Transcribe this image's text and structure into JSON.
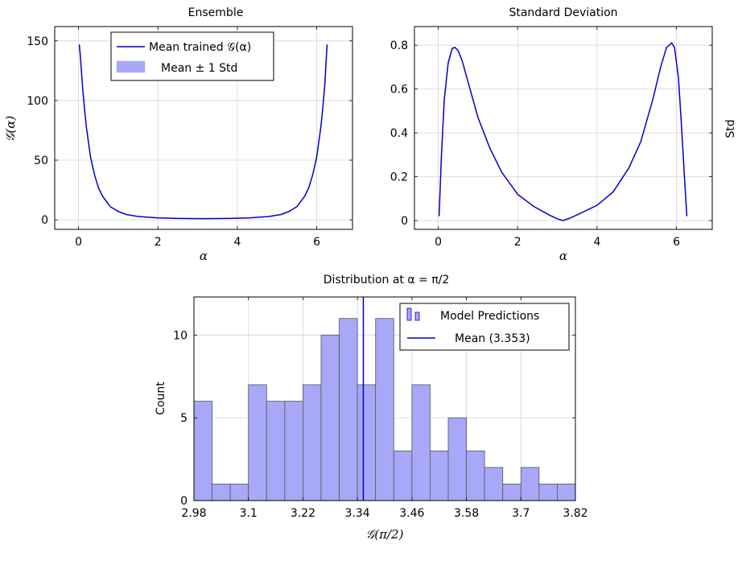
{
  "colors": {
    "line": "#0000cc",
    "fill": "#a8a8f8",
    "grid": "#d6d6d6",
    "edge": "#555555"
  },
  "chart_data": [
    {
      "type": "line",
      "title": "Ensemble",
      "xlabel": "α",
      "ylabel": "𝒢(α)",
      "xlim": [
        -0.6,
        6.9
      ],
      "ylim": [
        -8,
        162
      ],
      "xticks": [
        0,
        2,
        4,
        6
      ],
      "xtick_labels": [
        "0",
        "2",
        "4",
        "6"
      ],
      "yticks": [
        0,
        50,
        100,
        150
      ],
      "ytick_labels": [
        "0",
        "50",
        "100",
        "150"
      ],
      "grid": true,
      "legend": "top-center",
      "legend_entries": [
        "Mean trained 𝒢(α)",
        "Mean ± 1 Std"
      ],
      "series": [
        {
          "name": "Mean trained 𝒢(α)",
          "x": [
            0.02,
            0.05,
            0.1,
            0.15,
            0.2,
            0.3,
            0.4,
            0.5,
            0.6,
            0.8,
            1.0,
            1.2,
            1.5,
            2.0,
            2.5,
            3.0,
            3.14,
            3.3,
            3.8,
            4.3,
            4.8,
            5.1,
            5.3,
            5.5,
            5.7,
            5.8,
            5.9,
            6.0,
            6.1,
            6.15,
            6.2,
            6.26
          ],
          "y": [
            147,
            135,
            112,
            93,
            77,
            53,
            38,
            27,
            20,
            11,
            7,
            4.5,
            2.8,
            1.6,
            1.2,
            1.0,
            1.0,
            1.0,
            1.2,
            1.6,
            2.8,
            4.5,
            7,
            11,
            20,
            27,
            38,
            53,
            77,
            93,
            112,
            147
          ]
        }
      ]
    },
    {
      "type": "line",
      "title": "Standard Deviation",
      "xlabel": "α",
      "ylabel": "Std",
      "xlim": [
        -0.6,
        6.9
      ],
      "ylim": [
        -0.04,
        0.885
      ],
      "xticks": [
        0,
        2,
        4,
        6
      ],
      "xtick_labels": [
        "0",
        "2",
        "4",
        "6"
      ],
      "yticks": [
        0,
        0.2,
        0.4,
        0.6,
        0.8
      ],
      "ytick_labels": [
        "0",
        "0.2",
        "0.4",
        "0.6",
        "0.8"
      ],
      "grid": true,
      "series": [
        {
          "name": "",
          "x": [
            0.02,
            0.08,
            0.15,
            0.25,
            0.35,
            0.42,
            0.5,
            0.6,
            0.8,
            1.0,
            1.3,
            1.6,
            2.0,
            2.4,
            2.8,
            3.0,
            3.14,
            3.3,
            3.6,
            4.0,
            4.4,
            4.8,
            5.1,
            5.4,
            5.6,
            5.75,
            5.88,
            5.95,
            6.05,
            6.12,
            6.2,
            6.26
          ],
          "y": [
            0.02,
            0.3,
            0.55,
            0.72,
            0.785,
            0.79,
            0.775,
            0.73,
            0.6,
            0.47,
            0.33,
            0.22,
            0.12,
            0.065,
            0.025,
            0.008,
            0,
            0.01,
            0.035,
            0.07,
            0.13,
            0.24,
            0.36,
            0.55,
            0.7,
            0.79,
            0.81,
            0.79,
            0.65,
            0.45,
            0.2,
            0.02
          ]
        }
      ]
    },
    {
      "type": "bar",
      "title": "Distribution at α = π/2",
      "xlabel": "𝒢(π/2)",
      "ylabel": "Count",
      "xlim": [
        2.98,
        3.82
      ],
      "ylim": [
        0,
        12.3
      ],
      "xticks": [
        2.98,
        3.1,
        3.22,
        3.34,
        3.46,
        3.58,
        3.7,
        3.82
      ],
      "xtick_labels": [
        "2.98",
        "3.1",
        "3.22",
        "3.34",
        "3.46",
        "3.58",
        "3.7",
        "3.82"
      ],
      "yticks": [
        0,
        5,
        10
      ],
      "ytick_labels": [
        "0",
        "5",
        "10"
      ],
      "grid": true,
      "legend": "top-right",
      "legend_entries": [
        "Model Predictions",
        "Mean (3.353)"
      ],
      "bin_edges": [
        2.98,
        3.02,
        3.06,
        3.1,
        3.14,
        3.18,
        3.22,
        3.26,
        3.3,
        3.34,
        3.38,
        3.42,
        3.46,
        3.5,
        3.54,
        3.58,
        3.62,
        3.66,
        3.7,
        3.74,
        3.78,
        3.82
      ],
      "counts": [
        6,
        1,
        1,
        7,
        6,
        6,
        7,
        10,
        11,
        7,
        11,
        3,
        7,
        3,
        5,
        3,
        2,
        1,
        2,
        1,
        1
      ],
      "mean": 3.353
    }
  ]
}
